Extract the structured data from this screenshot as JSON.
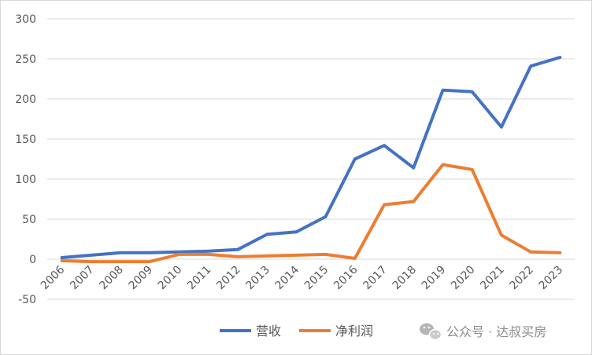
{
  "chart_data": {
    "type": "line",
    "categories": [
      "2006",
      "2007",
      "2008",
      "2009",
      "2010",
      "2011",
      "2012",
      "2013",
      "2014",
      "2015",
      "2016",
      "2017",
      "2018",
      "2019",
      "2020",
      "2021",
      "2022",
      "2023"
    ],
    "series": [
      {
        "name": "营收",
        "color": "#4472C4",
        "values": [
          2,
          5,
          8,
          8,
          9,
          10,
          12,
          31,
          34,
          53,
          125,
          142,
          114,
          211,
          209,
          165,
          241,
          252
        ]
      },
      {
        "name": "净利润",
        "color": "#ED7D31",
        "values": [
          -2,
          -3,
          -3,
          -3,
          6,
          6,
          3,
          4,
          5,
          6,
          1,
          68,
          72,
          118,
          112,
          30,
          9,
          8
        ]
      }
    ],
    "ylim": [
      -50,
      300
    ],
    "yticks": [
      -50,
      0,
      50,
      100,
      150,
      200,
      250,
      300
    ],
    "grid": true,
    "legend": "bottom",
    "title": "",
    "xlabel": "",
    "ylabel": ""
  },
  "watermark": {
    "text": "公众号 · 达叔买房",
    "icon": "wechat-icon"
  }
}
